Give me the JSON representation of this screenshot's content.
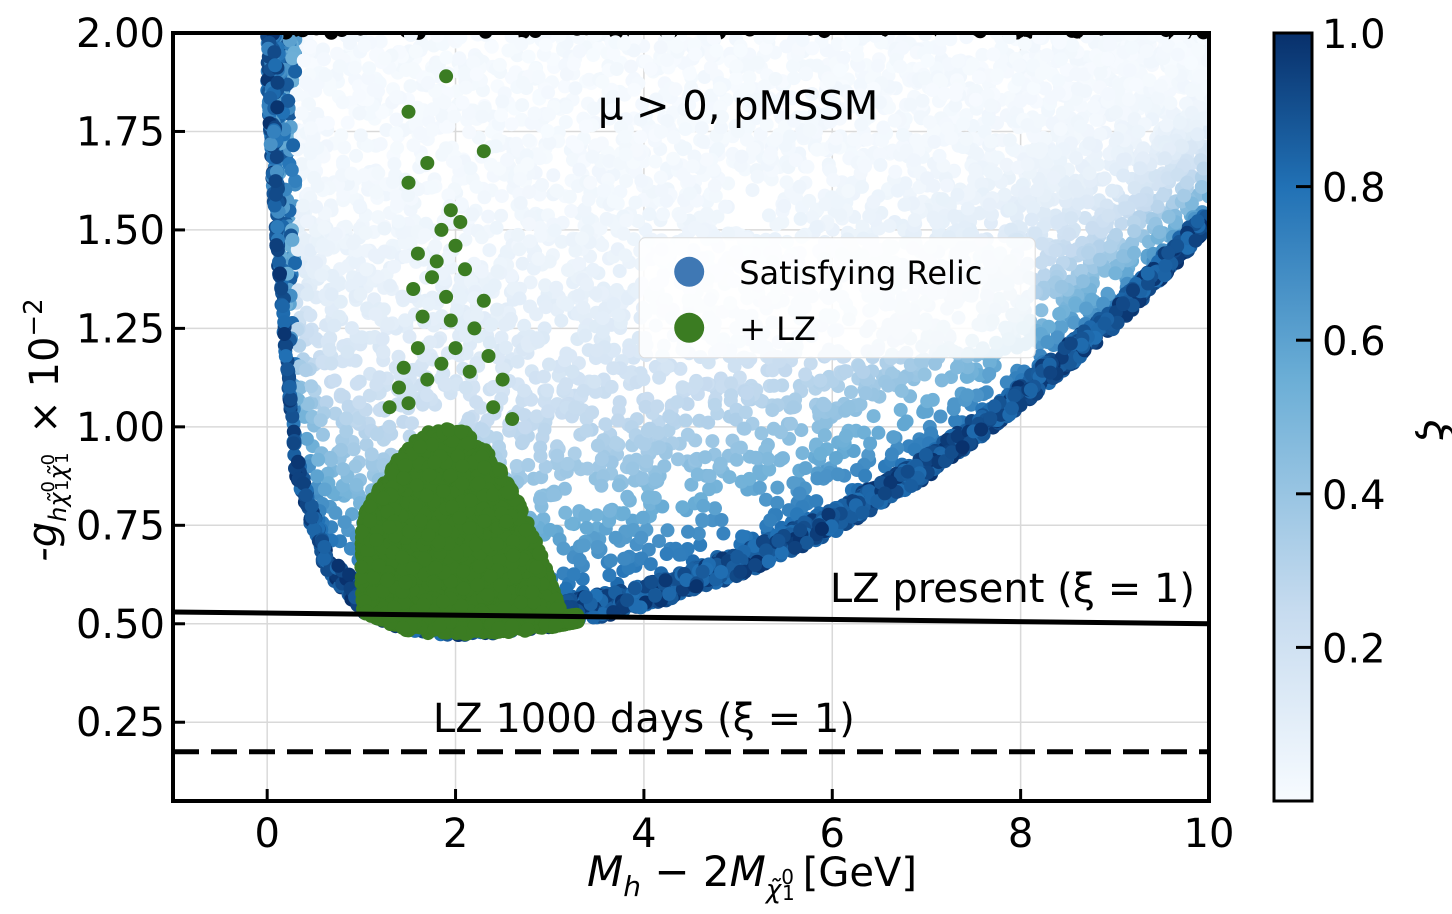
{
  "chart_data": {
    "type": "scatter",
    "title": "",
    "annotation": "μ > 0, pMSSM",
    "xlabel": {
      "main": "M",
      "sub_h": "h",
      "minus": " − 2",
      "M2": "M",
      "sub": "χ̃",
      "sup": "0",
      "sub1": "1",
      "unit": "[GeV]"
    },
    "ylabel": {
      "main": "-g",
      "sub": "hχ̃",
      "sub_sup": "0",
      "sub_i": "1",
      "sub2": "χ̃",
      "sub2_sup": "0",
      "sub2_i": "1",
      "tail": " × 10",
      "exp": "−2"
    },
    "xlim": [
      -1,
      10
    ],
    "ylim": [
      0.05,
      2.0
    ],
    "xticks": [
      "0",
      "2",
      "4",
      "6",
      "8",
      "10"
    ],
    "yticks": [
      "0.25",
      "0.50",
      "0.75",
      "1.00",
      "1.25",
      "1.50",
      "1.75",
      "2.00"
    ],
    "grid": true,
    "legend": {
      "placement": "upper-center",
      "entries": [
        {
          "label": "Satisfying Relic",
          "color": "#3f78b4"
        },
        {
          "label": "+ LZ",
          "color": "#3b7c22"
        }
      ]
    },
    "lines": [
      {
        "name": "LZ present (ξ = 1)",
        "style": "solid",
        "x": [
          -1,
          10
        ],
        "y": [
          0.53,
          0.5
        ],
        "label_text": "LZ present (ξ = 1)"
      },
      {
        "name": "LZ 1000 days (ξ = 1)",
        "style": "dashed",
        "x": [
          -1,
          10
        ],
        "y": [
          0.175,
          0.175
        ],
        "label_text": "LZ 1000 days (ξ = 1)"
      }
    ],
    "series": [
      {
        "name": "Satisfying Relic",
        "colormap": "Blues",
        "region": {
          "x_min": 0.0,
          "upper_envelope": [
            [
              0.0,
              2.0
            ],
            [
              10.0,
              2.0
            ]
          ],
          "lower_envelope": [
            [
              0.0,
              1.85
            ],
            [
              0.1,
              1.45
            ],
            [
              0.3,
              0.88
            ],
            [
              0.6,
              0.64
            ],
            [
              1.0,
              0.53
            ],
            [
              1.5,
              0.48
            ],
            [
              2.0,
              0.47
            ],
            [
              2.5,
              0.475
            ],
            [
              3.0,
              0.49
            ],
            [
              4.0,
              0.54
            ],
            [
              5.0,
              0.62
            ],
            [
              6.0,
              0.73
            ],
            [
              7.0,
              0.87
            ],
            [
              8.0,
              1.05
            ],
            [
              9.0,
              1.25
            ],
            [
              10.0,
              1.5
            ]
          ]
        }
      },
      {
        "name": "+ LZ",
        "color": "#3b7c22",
        "dense_region": {
          "x_range": [
            1.0,
            3.3
          ],
          "y_lower": 0.47,
          "y_upper_peak": 1.0,
          "peak_x": 1.9
        },
        "scattered_points": [
          [
            1.9,
            1.89
          ],
          [
            1.5,
            1.8
          ],
          [
            2.3,
            1.7
          ],
          [
            1.7,
            1.67
          ],
          [
            1.5,
            1.62
          ],
          [
            1.95,
            1.55
          ],
          [
            1.85,
            1.5
          ],
          [
            2.05,
            1.52
          ],
          [
            2.0,
            1.46
          ],
          [
            1.6,
            1.44
          ],
          [
            1.8,
            1.42
          ],
          [
            2.1,
            1.4
          ],
          [
            1.75,
            1.38
          ],
          [
            2.3,
            1.32
          ],
          [
            1.55,
            1.35
          ],
          [
            1.9,
            1.33
          ],
          [
            1.65,
            1.28
          ],
          [
            2.2,
            1.25
          ],
          [
            1.95,
            1.27
          ],
          [
            1.6,
            1.2
          ],
          [
            2.35,
            1.18
          ],
          [
            1.45,
            1.15
          ],
          [
            2.0,
            1.2
          ],
          [
            2.5,
            1.12
          ],
          [
            1.4,
            1.1
          ],
          [
            2.15,
            1.14
          ],
          [
            1.7,
            1.12
          ],
          [
            2.4,
            1.05
          ],
          [
            1.3,
            1.05
          ],
          [
            1.85,
            1.16
          ],
          [
            2.6,
            1.02
          ],
          [
            1.5,
            1.06
          ]
        ]
      }
    ],
    "colorbar": {
      "label": "ξ",
      "range": [
        0,
        1.0
      ],
      "ticks": [
        "0.2",
        "0.4",
        "0.6",
        "0.8",
        "1.0"
      ],
      "tick_values": [
        0.2,
        0.4,
        0.6,
        0.8,
        1.0
      ],
      "colors": [
        "#f7fbff",
        "#c6dbef",
        "#6baed6",
        "#2171b5",
        "#08306b"
      ]
    }
  }
}
